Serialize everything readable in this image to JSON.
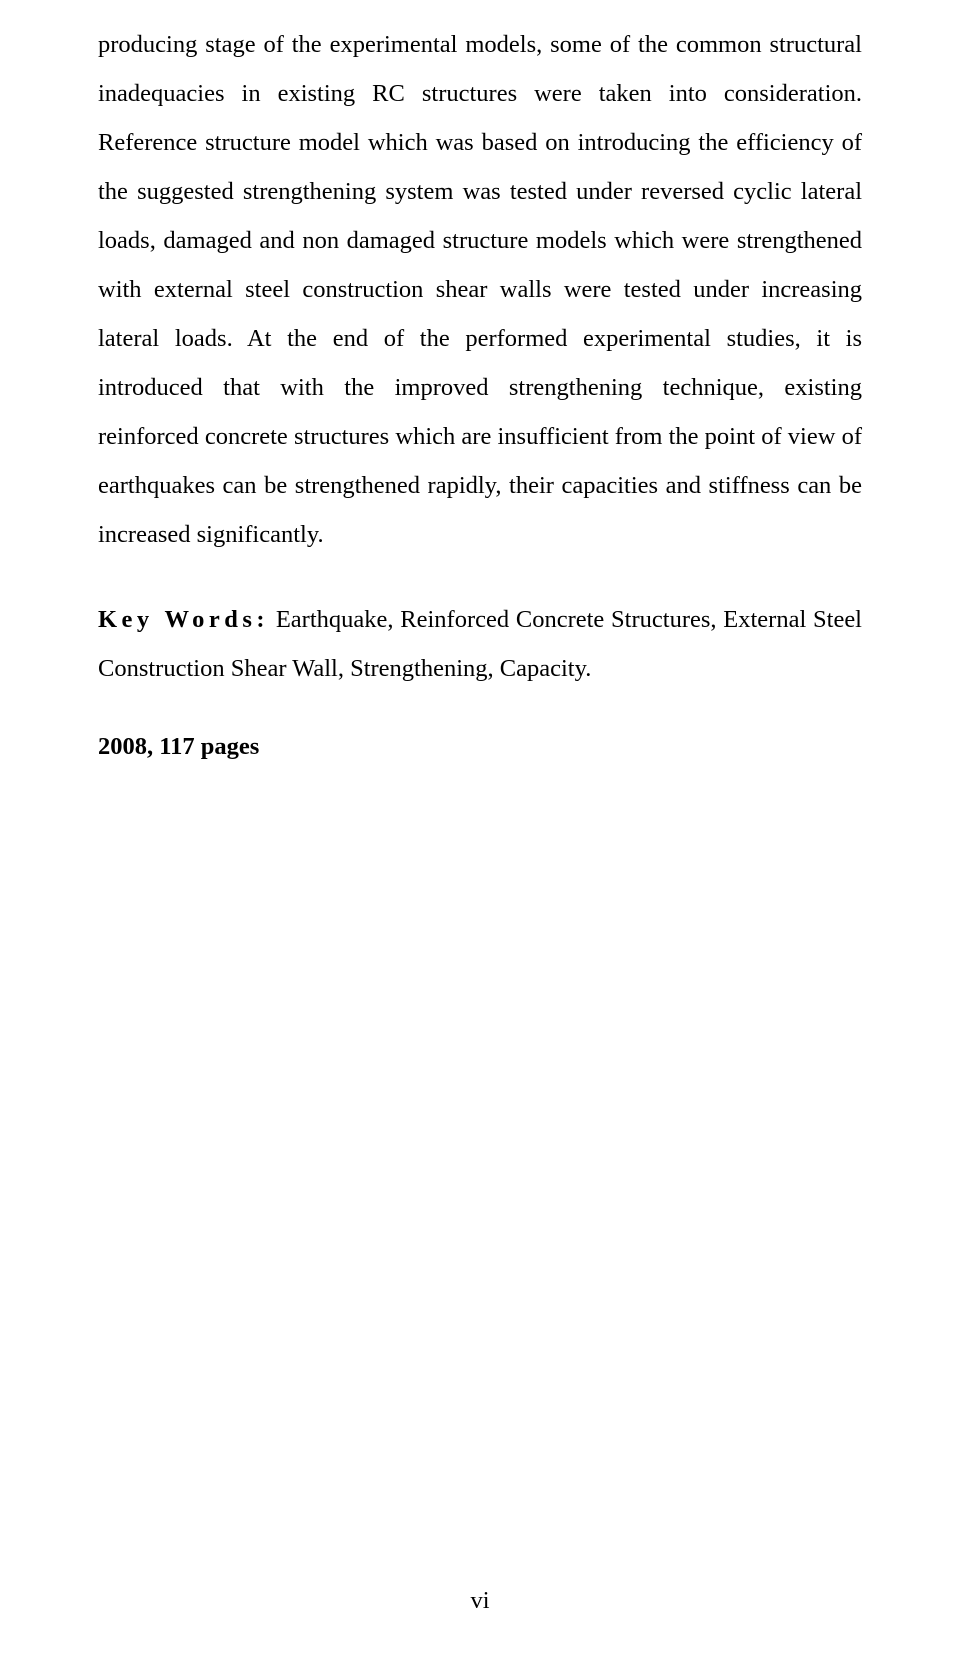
{
  "page": {
    "background_color": "#ffffff",
    "text_color": "#000000",
    "font_family": "Times New Roman",
    "body_font_size_pt": 12,
    "line_spacing": 2.0
  },
  "paragraphs": {
    "main": "producing stage of the experimental models, some of the common structural inadequacies in existing RC structures were taken into consideration. Reference structure model which was based on introducing the efficiency of the suggested strengthening system was tested under reversed cyclic lateral loads, damaged and non damaged structure models which were strengthened with external steel construction shear walls were tested under increasing lateral loads. At the end of the performed experimental studies, it is introduced that with the improved strengthening technique, existing reinforced concrete structures which are insufficient from the point of view of earthquakes can be strengthened rapidly, their capacities and stiffness can be increased significantly."
  },
  "keywords": {
    "label": "Key Words:",
    "text": " Earthquake, Reinforced Concrete Structures, External Steel Construction Shear Wall, Strengthening, Capacity."
  },
  "footer": {
    "year_pages": "2008, 117 pages",
    "page_number": "vi"
  }
}
